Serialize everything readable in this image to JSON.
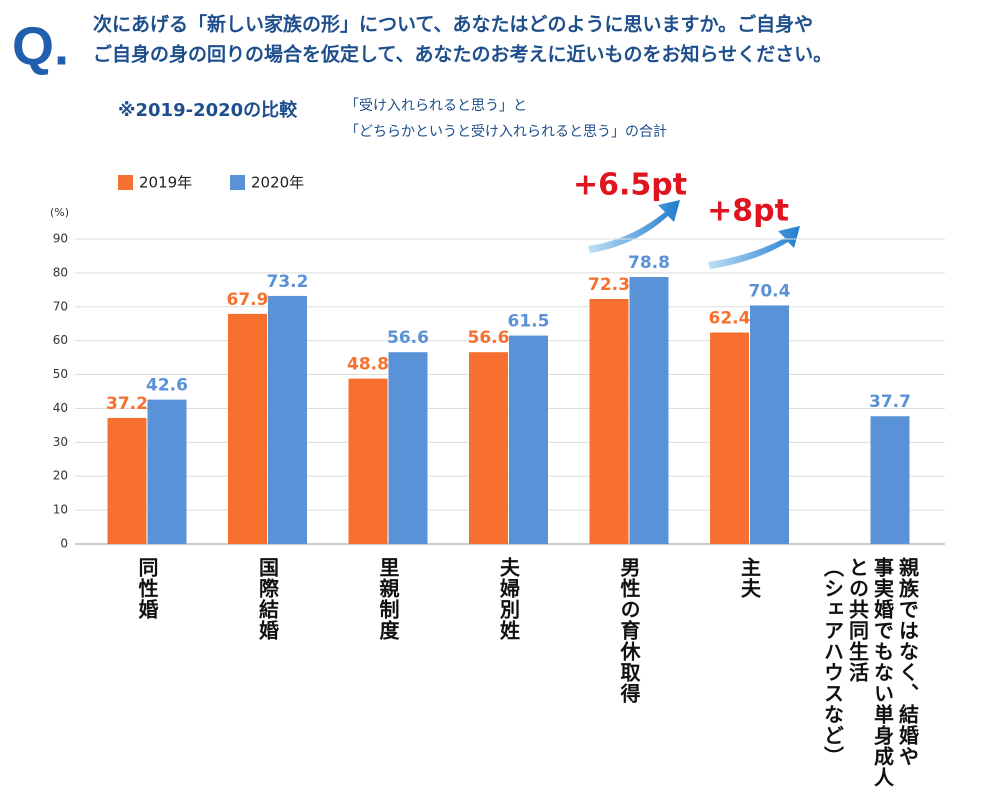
{
  "chart_data": {
    "type": "bar",
    "question_mark": "Q.",
    "title": [
      "次にあげる「新しい家族の形」について、あなたはどのように思いますか。ご自身や",
      "ご自身の身の回りの場合を仮定して、あなたのお考えに近いものをお知らせください。"
    ],
    "subtitle": "※2019-2020の比較",
    "note": [
      "「受け入れられると思う」と",
      "「どちらかというと受け入れられると思う」の合計"
    ],
    "y_unit": "(%)",
    "categories": [
      "同性婚",
      "国際結婚",
      "里親制度",
      "夫婦別姓",
      "男性の育休取得",
      "主夫",
      "親族ではなく、結婚や\n事実婚でもない単身成人\nとの共同生活\n（シェアハウスなど）"
    ],
    "series": [
      {
        "name": "2019年",
        "color": "#f7702f",
        "values": [
          37.2,
          67.9,
          48.8,
          56.6,
          72.3,
          62.4,
          null
        ]
      },
      {
        "name": "2020年",
        "color": "#5a92d8",
        "values": [
          42.6,
          73.2,
          56.6,
          61.5,
          78.8,
          70.4,
          37.7
        ]
      }
    ],
    "annotations": [
      "+6.5pt",
      "+8pt"
    ],
    "ylim": [
      0,
      90
    ],
    "yticks": [
      0,
      10,
      20,
      30,
      40,
      50,
      60,
      70,
      80,
      90
    ],
    "grid": true
  }
}
